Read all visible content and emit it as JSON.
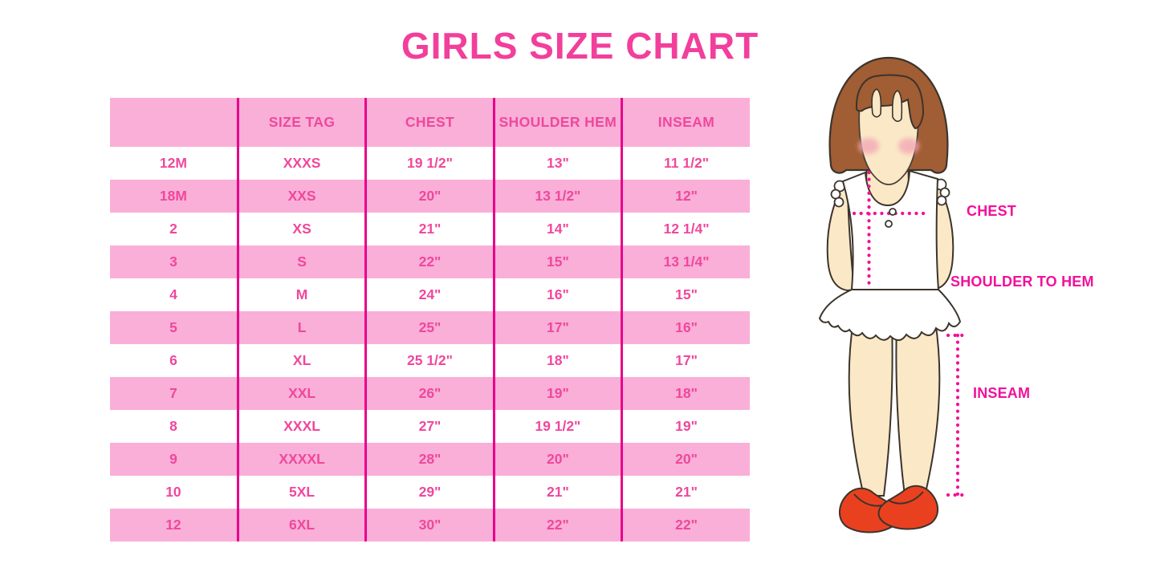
{
  "chart_data": {
    "type": "table",
    "title": "GIRLS SIZE CHART",
    "headers": [
      "",
      "SIZE TAG",
      "CHEST",
      "SHOULDER HEM",
      "INSEAM"
    ],
    "rows": [
      [
        "12M",
        "XXXS",
        "19 1/2\"",
        "13\"",
        "11 1/2\""
      ],
      [
        "18M",
        "XXS",
        "20\"",
        "13 1/2\"",
        "12\""
      ],
      [
        "2",
        "XS",
        "21\"",
        "14\"",
        "12 1/4\""
      ],
      [
        "3",
        "S",
        "22\"",
        "15\"",
        "13 1/4\""
      ],
      [
        "4",
        "M",
        "24\"",
        "16\"",
        "15\""
      ],
      [
        "5",
        "L",
        "25\"",
        "17\"",
        "16\""
      ],
      [
        "6",
        "XL",
        "25 1/2\"",
        "18\"",
        "17\""
      ],
      [
        "7",
        "XXL",
        "26\"",
        "19\"",
        "18\""
      ],
      [
        "8",
        "XXXL",
        "27\"",
        "19 1/2\"",
        "19\""
      ],
      [
        "9",
        "XXXXL",
        "28\"",
        "20\"",
        "20\""
      ],
      [
        "10",
        "5XL",
        "29\"",
        "21\"",
        "21\""
      ],
      [
        "12",
        "6XL",
        "30\"",
        "22\"",
        "22\""
      ]
    ],
    "layout_hints": {
      "striped_rows": true,
      "grid": "vertical-dividers-only"
    }
  },
  "diagram": {
    "chest_label": "CHEST",
    "shoulder_to_hem_label": "SHOULDER TO HEM",
    "inseam_label": "INSEAM"
  },
  "colors": {
    "title_pink": "#F23F9C",
    "table_text_pink": "#F0479C",
    "row_band_pink": "#F9AFD8",
    "divider_magenta": "#E8018B",
    "measure_line_pink": "#F2109B",
    "hair_brown": "#A15D33",
    "skin": "#FBE8C6",
    "blush_pink": "#F2A9B6",
    "shoe_red": "#E9411F",
    "outline_dark": "#3B342C"
  }
}
